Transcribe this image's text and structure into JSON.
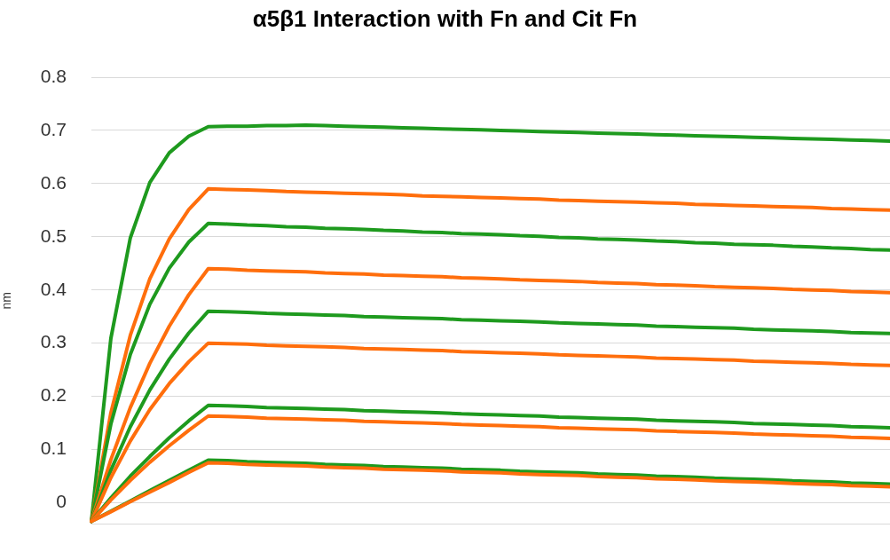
{
  "chart_data": {
    "type": "line",
    "title": "α5β1 Interaction with Fn and Cit Fn",
    "ylabel": "nm",
    "categories": [
      null,
      null,
      null,
      null,
      null,
      null,
      null,
      null,
      null,
      null,
      null,
      null,
      null,
      null,
      null,
      null,
      null,
      null,
      null,
      null,
      null,
      null,
      null,
      null,
      null,
      null,
      null,
      null,
      null,
      null,
      null,
      null,
      null,
      null,
      null,
      null,
      null,
      null,
      null,
      null,
      null,
      null
    ],
    "ylim": [
      -0.04,
      0.8
    ],
    "yticks": [
      0,
      0.1,
      0.2,
      0.3,
      0.4,
      0.5,
      0.6,
      0.7,
      0.8
    ],
    "grid": "y",
    "legend": false,
    "tick_labels": "y",
    "marker": "none",
    "line_style": "solid",
    "series": [
      {
        "color": "#1e9a1e",
        "values": [
          -0.035,
          0.309,
          0.498,
          0.602,
          0.658,
          0.689,
          0.707,
          0.708,
          0.708,
          0.709,
          0.709,
          0.71,
          0.709,
          0.708,
          0.707,
          0.706,
          0.705,
          0.704,
          0.703,
          0.702,
          0.701,
          0.7,
          0.699,
          0.698,
          0.697,
          0.696,
          0.695,
          0.694,
          0.693,
          0.692,
          0.691,
          0.69,
          0.689,
          0.688,
          0.687,
          0.686,
          0.685,
          0.684,
          0.683,
          0.682,
          0.681,
          0.68
        ]
      },
      {
        "color": "#ff6e0c",
        "values": [
          -0.035,
          0.169,
          0.315,
          0.421,
          0.496,
          0.551,
          0.59,
          0.589,
          0.588,
          0.587,
          0.585,
          0.584,
          0.583,
          0.582,
          0.581,
          0.58,
          0.579,
          0.577,
          0.576,
          0.575,
          0.574,
          0.573,
          0.572,
          0.571,
          0.569,
          0.568,
          0.567,
          0.566,
          0.565,
          0.564,
          0.563,
          0.561,
          0.56,
          0.559,
          0.558,
          0.557,
          0.556,
          0.555,
          0.553,
          0.552,
          0.551,
          0.55
        ]
      },
      {
        "color": "#1e9a1e",
        "values": [
          -0.035,
          0.148,
          0.279,
          0.373,
          0.441,
          0.49,
          0.525,
          0.524,
          0.522,
          0.521,
          0.519,
          0.518,
          0.516,
          0.515,
          0.514,
          0.512,
          0.511,
          0.509,
          0.508,
          0.506,
          0.505,
          0.504,
          0.502,
          0.501,
          0.499,
          0.498,
          0.496,
          0.495,
          0.494,
          0.492,
          0.491,
          0.489,
          0.488,
          0.486,
          0.485,
          0.484,
          0.482,
          0.481,
          0.479,
          0.478,
          0.476,
          0.475
        ]
      },
      {
        "color": "#ff6e0c",
        "values": [
          -0.035,
          0.081,
          0.179,
          0.262,
          0.332,
          0.391,
          0.44,
          0.439,
          0.437,
          0.436,
          0.435,
          0.434,
          0.432,
          0.431,
          0.43,
          0.428,
          0.427,
          0.426,
          0.425,
          0.423,
          0.422,
          0.421,
          0.419,
          0.418,
          0.417,
          0.416,
          0.414,
          0.413,
          0.412,
          0.41,
          0.409,
          0.408,
          0.406,
          0.405,
          0.404,
          0.403,
          0.401,
          0.4,
          0.399,
          0.397,
          0.396,
          0.395
        ]
      },
      {
        "color": "#1e9a1e",
        "values": [
          -0.035,
          0.061,
          0.143,
          0.212,
          0.27,
          0.319,
          0.36,
          0.359,
          0.358,
          0.356,
          0.355,
          0.354,
          0.353,
          0.352,
          0.35,
          0.349,
          0.348,
          0.347,
          0.346,
          0.344,
          0.343,
          0.342,
          0.341,
          0.34,
          0.338,
          0.337,
          0.336,
          0.335,
          0.334,
          0.332,
          0.331,
          0.33,
          0.329,
          0.328,
          0.326,
          0.325,
          0.324,
          0.323,
          0.322,
          0.32,
          0.319,
          0.318
        ]
      },
      {
        "color": "#ff6e0c",
        "values": [
          -0.035,
          0.047,
          0.116,
          0.175,
          0.224,
          0.265,
          0.3,
          0.299,
          0.298,
          0.296,
          0.295,
          0.294,
          0.293,
          0.292,
          0.29,
          0.289,
          0.288,
          0.287,
          0.286,
          0.284,
          0.283,
          0.282,
          0.281,
          0.28,
          0.278,
          0.277,
          0.276,
          0.275,
          0.274,
          0.272,
          0.271,
          0.27,
          0.269,
          0.268,
          0.266,
          0.265,
          0.264,
          0.263,
          0.262,
          0.26,
          0.259,
          0.258
        ]
      },
      {
        "color": "#1e9a1e",
        "values": [
          -0.035,
          0.009,
          0.05,
          0.087,
          0.122,
          0.154,
          0.183,
          0.182,
          0.181,
          0.179,
          0.178,
          0.177,
          0.176,
          0.175,
          0.173,
          0.172,
          0.171,
          0.17,
          0.169,
          0.167,
          0.166,
          0.165,
          0.164,
          0.163,
          0.161,
          0.16,
          0.159,
          0.158,
          0.157,
          0.155,
          0.154,
          0.153,
          0.152,
          0.151,
          0.149,
          0.148,
          0.147,
          0.146,
          0.145,
          0.143,
          0.142,
          0.141
        ]
      },
      {
        "color": "#ff6e0c",
        "values": [
          -0.035,
          0.005,
          0.042,
          0.076,
          0.107,
          0.136,
          0.163,
          0.162,
          0.161,
          0.159,
          0.158,
          0.157,
          0.156,
          0.155,
          0.153,
          0.152,
          0.151,
          0.15,
          0.149,
          0.147,
          0.146,
          0.145,
          0.144,
          0.143,
          0.141,
          0.14,
          0.139,
          0.138,
          0.137,
          0.135,
          0.134,
          0.133,
          0.132,
          0.131,
          0.129,
          0.128,
          0.127,
          0.126,
          0.125,
          0.123,
          0.122,
          0.121
        ]
      },
      {
        "color": "#1e9a1e",
        "values": [
          -0.035,
          -0.016,
          0.003,
          0.023,
          0.042,
          0.061,
          0.08,
          0.079,
          0.077,
          0.076,
          0.075,
          0.074,
          0.072,
          0.071,
          0.07,
          0.068,
          0.067,
          0.066,
          0.065,
          0.063,
          0.062,
          0.061,
          0.059,
          0.058,
          0.057,
          0.056,
          0.054,
          0.053,
          0.052,
          0.05,
          0.049,
          0.048,
          0.046,
          0.045,
          0.044,
          0.043,
          0.041,
          0.04,
          0.039,
          0.037,
          0.036,
          0.035
        ]
      },
      {
        "color": "#ff6e0c",
        "values": [
          -0.035,
          -0.017,
          0.002,
          0.02,
          0.038,
          0.057,
          0.075,
          0.074,
          0.072,
          0.071,
          0.07,
          0.069,
          0.067,
          0.066,
          0.065,
          0.063,
          0.062,
          0.061,
          0.06,
          0.058,
          0.057,
          0.056,
          0.054,
          0.053,
          0.052,
          0.051,
          0.049,
          0.048,
          0.047,
          0.045,
          0.044,
          0.043,
          0.041,
          0.04,
          0.039,
          0.038,
          0.036,
          0.035,
          0.034,
          0.032,
          0.031,
          0.03
        ]
      }
    ]
  }
}
